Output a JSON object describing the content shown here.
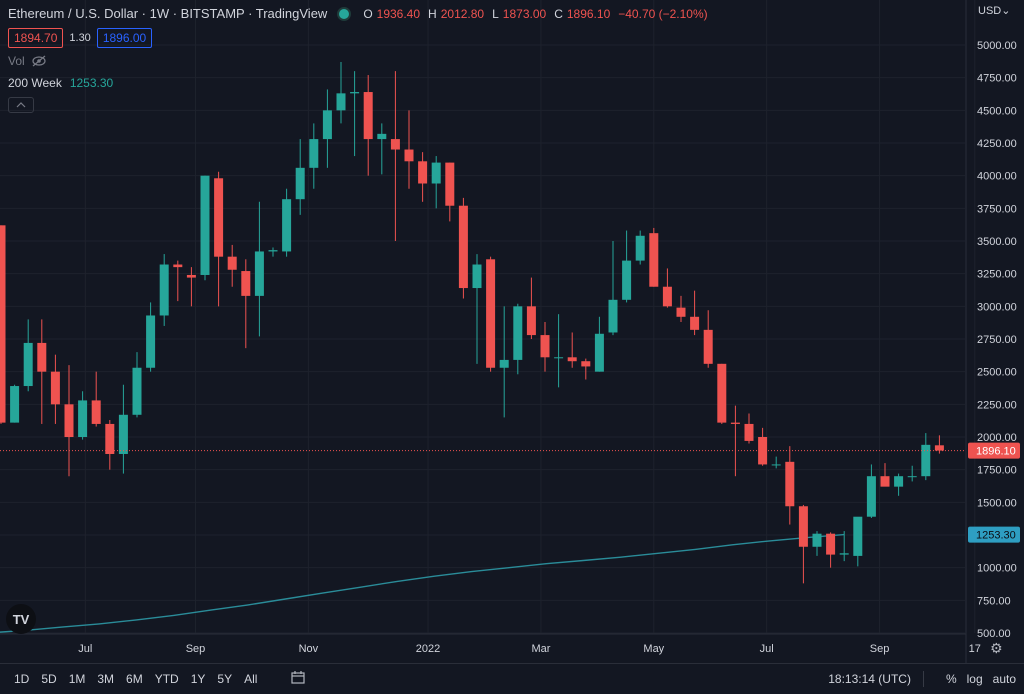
{
  "header": {
    "title": "Ethereum / U.S. Dollar · 1W · BITSTAMP · TradingView",
    "ohlc": [
      {
        "k": "O",
        "v": "1936.40"
      },
      {
        "k": "H",
        "v": "2012.80"
      },
      {
        "k": "L",
        "v": "1873.00"
      },
      {
        "k": "C",
        "v": "1896.10"
      }
    ],
    "change": "−40.70 (−2.10%)",
    "bid": "1894.70",
    "spread": "1.30",
    "ask": "1896.00",
    "vol_label": "Vol",
    "indicator_name": "200 Week",
    "indicator_value": "1253.30"
  },
  "axis": {
    "currency": "USD",
    "price_label": "1896.10",
    "ma_label": "1253.30"
  },
  "logo": "TV",
  "bottom": {
    "ranges": [
      "1D",
      "5D",
      "1M",
      "3M",
      "6M",
      "YTD",
      "1Y",
      "5Y",
      "All"
    ],
    "time": "18:13:14 (UTC)",
    "percent": "%",
    "log": "log",
    "auto": "auto"
  },
  "colors": {
    "up": "#26a69a",
    "down": "#ef5350",
    "ma": "#2a8c99",
    "background": "#131722",
    "text": "#d1d4dc",
    "price_line": "#ef5350",
    "ma_label_bg": "#2e9ec2"
  },
  "chart_data": {
    "type": "candlestick",
    "ylim": [
      500,
      5100
    ],
    "yticks": [
      500,
      750,
      1000,
      1250,
      1500,
      1750,
      2000,
      2250,
      2500,
      2750,
      3000,
      3250,
      3500,
      3750,
      4000,
      4250,
      4500,
      4750,
      5000
    ],
    "ytick_labels": [
      "500.00",
      "750.00",
      "1000.00",
      "1250.00",
      "1500.00",
      "1750.00",
      "2000.00",
      "2250.00",
      "2500.00",
      "2750.00",
      "3000.00",
      "3250.00",
      "3500.00",
      "3750.00",
      "4000.00",
      "4250.00",
      "4500.00",
      "4750.00",
      "5000.00"
    ],
    "xticks": [
      "Jul",
      "Sep",
      "Nov",
      "2022",
      "Mar",
      "May",
      "Jul",
      "Sep",
      "17"
    ],
    "xtick_index": [
      6.2,
      14.3,
      22.6,
      31.4,
      39.7,
      48.0,
      56.3,
      64.6,
      71.6
    ],
    "last_price": 1896.1,
    "ma": {
      "name": "200 Week",
      "values": [
        500,
        520,
        545,
        570,
        600,
        635,
        675,
        715,
        760,
        805,
        850,
        895,
        935,
        970,
        1000,
        1030,
        1055,
        1080,
        1110,
        1140,
        1175,
        1205,
        1230,
        1253.3
      ],
      "start_index": -1,
      "end_index": 62
    },
    "candles": [
      [
        3620,
        3620,
        2100,
        2110
      ],
      [
        2110,
        2400,
        2110,
        2390
      ],
      [
        2390,
        2900,
        2350,
        2720
      ],
      [
        2720,
        2900,
        2100,
        2500
      ],
      [
        2500,
        2630,
        2100,
        2250
      ],
      [
        2250,
        2550,
        1700,
        2000
      ],
      [
        2000,
        2350,
        1980,
        2280
      ],
      [
        2280,
        2500,
        2080,
        2100
      ],
      [
        2100,
        2130,
        1750,
        1870
      ],
      [
        1870,
        2400,
        1720,
        2170
      ],
      [
        2170,
        2650,
        2150,
        2530
      ],
      [
        2530,
        3030,
        2500,
        2930
      ],
      [
        2930,
        3400,
        2850,
        3320
      ],
      [
        3320,
        3350,
        3040,
        3300
      ],
      [
        3240,
        3300,
        3000,
        3220
      ],
      [
        3240,
        4000,
        3200,
        4000
      ],
      [
        3980,
        4030,
        3000,
        3380
      ],
      [
        3380,
        3470,
        3150,
        3280
      ],
      [
        3270,
        3360,
        2680,
        3080
      ],
      [
        3080,
        3800,
        2770,
        3420
      ],
      [
        3420,
        3450,
        3380,
        3430
      ],
      [
        3420,
        3900,
        3380,
        3820
      ],
      [
        3820,
        4280,
        3700,
        4060
      ],
      [
        4060,
        4400,
        3900,
        4280
      ],
      [
        4280,
        4660,
        4060,
        4500
      ],
      [
        4500,
        4870,
        4400,
        4630
      ],
      [
        4630,
        4800,
        4150,
        4640
      ],
      [
        4640,
        4770,
        4000,
        4280
      ],
      [
        4280,
        4400,
        4010,
        4320
      ],
      [
        4280,
        4800,
        3500,
        4200
      ],
      [
        4200,
        4500,
        3900,
        4110
      ],
      [
        4110,
        4180,
        3800,
        3940
      ],
      [
        3940,
        4150,
        3750,
        4100
      ],
      [
        4100,
        4100,
        3650,
        3770
      ],
      [
        3770,
        3830,
        3060,
        3140
      ],
      [
        3140,
        3400,
        2560,
        3320
      ],
      [
        3360,
        3380,
        2500,
        2530
      ],
      [
        2530,
        3000,
        2150,
        2590
      ],
      [
        2590,
        3020,
        2480,
        3000
      ],
      [
        3000,
        3220,
        2750,
        2780
      ],
      [
        2780,
        2880,
        2500,
        2610
      ],
      [
        2610,
        2940,
        2380,
        2610
      ],
      [
        2610,
        2800,
        2530,
        2580
      ],
      [
        2580,
        2600,
        2440,
        2540
      ],
      [
        2500,
        2920,
        2500,
        2790
      ],
      [
        2800,
        3500,
        2780,
        3050
      ],
      [
        3050,
        3580,
        3030,
        3350
      ],
      [
        3350,
        3580,
        3320,
        3540
      ],
      [
        3560,
        3600,
        3150,
        3150
      ],
      [
        3150,
        3290,
        2990,
        3000
      ],
      [
        2990,
        3080,
        2880,
        2920
      ],
      [
        2920,
        3120,
        2780,
        2820
      ],
      [
        2820,
        2970,
        2530,
        2560
      ],
      [
        2560,
        2560,
        2100,
        2110
      ],
      [
        2110,
        2240,
        1700,
        2100
      ],
      [
        2100,
        2180,
        1950,
        1970
      ],
      [
        2000,
        2070,
        1780,
        1790
      ],
      [
        1790,
        1850,
        1760,
        1790
      ],
      [
        1810,
        1930,
        1330,
        1470
      ],
      [
        1470,
        1480,
        880,
        1160
      ],
      [
        1160,
        1280,
        1090,
        1260
      ],
      [
        1260,
        1270,
        1000,
        1100
      ],
      [
        1100,
        1280,
        1050,
        1110
      ],
      [
        1090,
        1380,
        1010,
        1390
      ],
      [
        1390,
        1790,
        1380,
        1700
      ],
      [
        1700,
        1800,
        1630,
        1620
      ],
      [
        1620,
        1720,
        1550,
        1700
      ],
      [
        1700,
        1780,
        1660,
        1700
      ],
      [
        1700,
        2030,
        1670,
        1940
      ],
      [
        1936.4,
        2012.8,
        1873.0,
        1896.1
      ]
    ]
  }
}
